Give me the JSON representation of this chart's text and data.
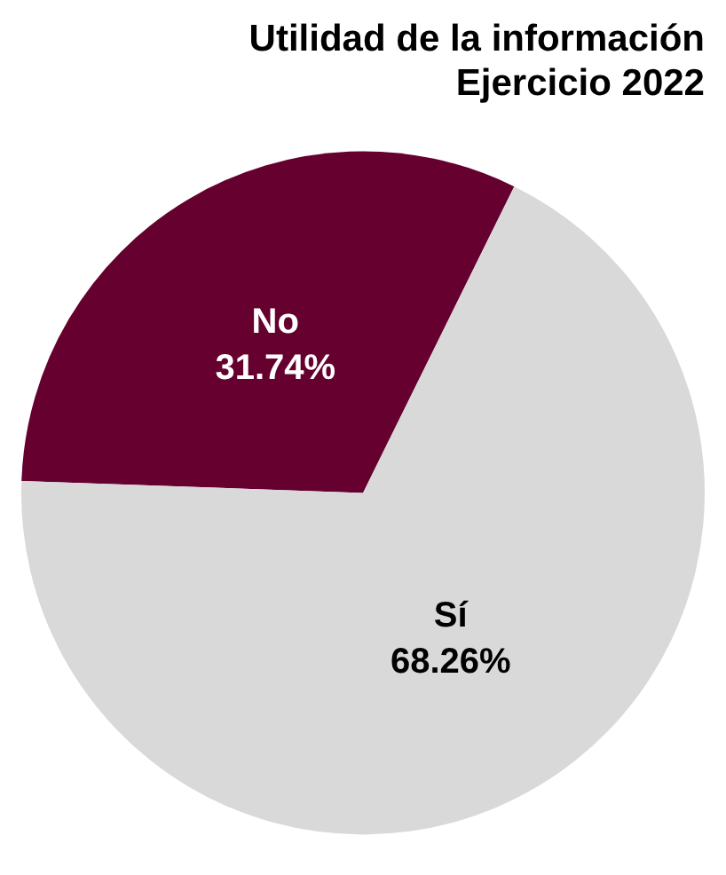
{
  "chart_data": {
    "type": "pie",
    "title": "Utilidad de la información\nEjercicio 2022",
    "categories": [
      "No",
      "Sí"
    ],
    "values": [
      31.74,
      68.26
    ],
    "colors": [
      "#65002f",
      "#d9d9d9"
    ],
    "value_labels": [
      "31.74%",
      "68.26%"
    ],
    "legend": false
  }
}
